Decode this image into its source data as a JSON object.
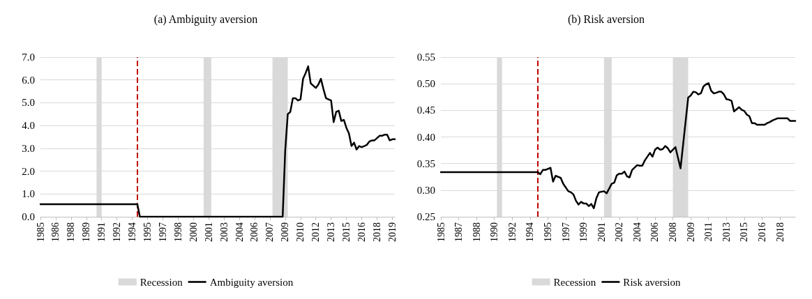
{
  "chart_data": [
    {
      "type": "line",
      "title": "(a) Ambiguity aversion",
      "xlim": [
        1985,
        2019.75
      ],
      "xticks": [
        {
          "value": 1985,
          "label": "1985"
        },
        {
          "value": 1986.5,
          "label": "1986"
        },
        {
          "value": 1988,
          "label": "1988"
        },
        {
          "value": 1989.5,
          "label": "1989"
        },
        {
          "value": 1991,
          "label": "1991"
        },
        {
          "value": 1992.5,
          "label": "1992"
        },
        {
          "value": 1994,
          "label": "1994"
        },
        {
          "value": 1995.5,
          "label": "1995"
        },
        {
          "value": 1997,
          "label": "1997"
        },
        {
          "value": 1998.5,
          "label": "1998"
        },
        {
          "value": 2000,
          "label": "2000"
        },
        {
          "value": 2001.5,
          "label": "2001"
        },
        {
          "value": 2003,
          "label": "2003"
        },
        {
          "value": 2004.5,
          "label": "2004"
        },
        {
          "value": 2006,
          "label": "2006"
        },
        {
          "value": 2007.5,
          "label": "2007"
        },
        {
          "value": 2009,
          "label": "2009"
        },
        {
          "value": 2010.5,
          "label": "2010"
        },
        {
          "value": 2012,
          "label": "2012"
        },
        {
          "value": 2013.5,
          "label": "2013"
        },
        {
          "value": 2015,
          "label": "2015"
        },
        {
          "value": 2016.5,
          "label": "2016"
        },
        {
          "value": 2018,
          "label": "2018"
        },
        {
          "value": 2019.5,
          "label": "2019"
        }
      ],
      "ylim": [
        0,
        7
      ],
      "yticks": [
        {
          "value": 0,
          "label": "0.0"
        },
        {
          "value": 1,
          "label": "1.0"
        },
        {
          "value": 2,
          "label": "2.0"
        },
        {
          "value": 3,
          "label": "3.0"
        },
        {
          "value": 4,
          "label": "4.0"
        },
        {
          "value": 5,
          "label": "5.0"
        },
        {
          "value": 6,
          "label": "6.0"
        },
        {
          "value": 7,
          "label": "7.0"
        }
      ],
      "grid": "y",
      "legend": "bottom",
      "marker": "none",
      "series": [
        {
          "name": "Ambiguity aversion",
          "color": "#000000",
          "line_style": "solid",
          "x": [
            1985,
            1994.5,
            1994.75,
            2008.75,
            2009,
            2009.25,
            2009.5,
            2009.75,
            2010,
            2010.25,
            2010.5,
            2010.75,
            2011,
            2011.25,
            2011.5,
            2011.75,
            2012,
            2012.25,
            2012.5,
            2012.75,
            2013,
            2013.25,
            2013.5,
            2013.75,
            2014,
            2014.25,
            2014.5,
            2014.75,
            2015,
            2015.25,
            2015.5,
            2015.75,
            2016,
            2016.25,
            2016.5,
            2016.75,
            2017,
            2017.25,
            2017.5,
            2017.75,
            2018,
            2018.25,
            2018.5,
            2018.75,
            2019,
            2019.25,
            2019.5,
            2019.75
          ],
          "values": [
            0.55,
            0.55,
            0,
            0,
            2.9,
            4.5,
            4.6,
            5.2,
            5.2,
            5.1,
            5.15,
            6.05,
            6.3,
            6.6,
            5.85,
            5.75,
            5.65,
            5.8,
            6.05,
            5.6,
            5.2,
            5.15,
            5.1,
            4.15,
            4.6,
            4.65,
            4.2,
            4.25,
            3.9,
            3.65,
            3.1,
            3.25,
            2.95,
            3.1,
            3.05,
            3.1,
            3.15,
            3.3,
            3.35,
            3.35,
            3.45,
            3.55,
            3.55,
            3.6,
            3.6,
            3.35,
            3.4,
            3.4
          ]
        }
      ],
      "bands": [
        {
          "axis": "x",
          "from": 1990.5,
          "to": 1991,
          "label": "Recession",
          "color": "#d9d9d9"
        },
        {
          "axis": "x",
          "from": 2001,
          "to": 2001.75,
          "color": "#d9d9d9"
        },
        {
          "axis": "x",
          "from": 2007.75,
          "to": 2009.25,
          "color": "#d9d9d9"
        }
      ],
      "ref_lines": [
        {
          "axis": "x",
          "value": 1994.5,
          "color": "#c00000",
          "line_style": "dashed"
        }
      ]
    },
    {
      "type": "line",
      "title": "(b) Risk aversion",
      "xlim": [
        1985,
        2019.75
      ],
      "xticks": [
        {
          "value": 1985,
          "label": "1985"
        },
        {
          "value": 1986.75,
          "label": "1987"
        },
        {
          "value": 1988.5,
          "label": "1988"
        },
        {
          "value": 1990.25,
          "label": "1990"
        },
        {
          "value": 1992,
          "label": "1992"
        },
        {
          "value": 1993.75,
          "label": "1994"
        },
        {
          "value": 1995.5,
          "label": "1995"
        },
        {
          "value": 1997.25,
          "label": "1997"
        },
        {
          "value": 1999,
          "label": "1999"
        },
        {
          "value": 2000.75,
          "label": "2001"
        },
        {
          "value": 2002.5,
          "label": "2002"
        },
        {
          "value": 2004.25,
          "label": "2004"
        },
        {
          "value": 2006,
          "label": "2006"
        },
        {
          "value": 2007.75,
          "label": "2008"
        },
        {
          "value": 2009.5,
          "label": "2009"
        },
        {
          "value": 2011.25,
          "label": "2011"
        },
        {
          "value": 2013,
          "label": "2013"
        },
        {
          "value": 2014.75,
          "label": "2015"
        },
        {
          "value": 2016.5,
          "label": "2016"
        },
        {
          "value": 2018.25,
          "label": "2018"
        }
      ],
      "ylim": [
        0.25,
        0.55
      ],
      "yticks": [
        {
          "value": 0.25,
          "label": "0.25"
        },
        {
          "value": 0.3,
          "label": "0.30"
        },
        {
          "value": 0.35,
          "label": "0.35"
        },
        {
          "value": 0.4,
          "label": "0.40"
        },
        {
          "value": 0.45,
          "label": "0.45"
        },
        {
          "value": 0.5,
          "label": "0.50"
        },
        {
          "value": 0.55,
          "label": "0.55"
        }
      ],
      "grid": "y",
      "legend": "bottom",
      "marker": "none",
      "series": [
        {
          "name": "Risk aversion",
          "color": "#000000",
          "line_style": "solid",
          "x": [
            1985,
            1994.5,
            1994.75,
            1995,
            1995.25,
            1995.75,
            1996,
            1996.25,
            1996.75,
            1997,
            1997.5,
            1997.75,
            1998,
            1998.25,
            1998.5,
            1998.75,
            1999,
            1999.25,
            1999.5,
            1999.75,
            2000,
            2000.25,
            2000.5,
            2000.75,
            2001,
            2001.25,
            2001.5,
            2001.75,
            2002,
            2002.25,
            2002.5,
            2002.75,
            2003,
            2003.25,
            2003.5,
            2003.75,
            2004.25,
            2004.5,
            2004.75,
            2005,
            2005.5,
            2005.75,
            2006,
            2006.25,
            2006.5,
            2006.75,
            2007,
            2007.25,
            2007.5,
            2008,
            2008.5,
            2009.25,
            2009.5,
            2009.75,
            2010,
            2010.25,
            2010.5,
            2010.75,
            2011,
            2011.25,
            2011.5,
            2011.75,
            2012,
            2012.25,
            2012.5,
            2012.75,
            2013,
            2013.25,
            2013.5,
            2013.75,
            2014,
            2014.25,
            2014.5,
            2014.75,
            2015,
            2015.25,
            2015.5,
            2015.75,
            2016,
            2016.25,
            2016.5,
            2016.75,
            2017,
            2017.25,
            2017.5,
            2017.75,
            2018,
            2018.25,
            2018.5,
            2018.75,
            2019,
            2019.25,
            2019.5,
            2019.75
          ],
          "values": [
            0.334,
            0.334,
            0.33,
            0.338,
            0.338,
            0.342,
            0.316,
            0.327,
            0.323,
            0.312,
            0.298,
            0.296,
            0.292,
            0.28,
            0.273,
            0.278,
            0.275,
            0.275,
            0.27,
            0.274,
            0.266,
            0.285,
            0.296,
            0.297,
            0.298,
            0.294,
            0.303,
            0.312,
            0.314,
            0.328,
            0.331,
            0.331,
            0.335,
            0.326,
            0.324,
            0.338,
            0.347,
            0.346,
            0.346,
            0.356,
            0.37,
            0.363,
            0.376,
            0.38,
            0.376,
            0.377,
            0.383,
            0.379,
            0.371,
            0.381,
            0.341,
            0.474,
            0.478,
            0.485,
            0.484,
            0.48,
            0.482,
            0.495,
            0.499,
            0.501,
            0.487,
            0.482,
            0.483,
            0.485,
            0.485,
            0.48,
            0.471,
            0.47,
            0.468,
            0.448,
            0.452,
            0.456,
            0.451,
            0.449,
            0.442,
            0.439,
            0.426,
            0.426,
            0.423,
            0.423,
            0.423,
            0.423,
            0.426,
            0.428,
            0.431,
            0.433,
            0.435,
            0.435,
            0.435,
            0.435,
            0.435,
            0.43,
            0.43,
            0.43
          ]
        }
      ],
      "bands": [
        {
          "axis": "x",
          "from": 1990.5,
          "to": 1991,
          "label": "Recession",
          "color": "#d9d9d9"
        },
        {
          "axis": "x",
          "from": 2001,
          "to": 2001.75,
          "color": "#d9d9d9"
        },
        {
          "axis": "x",
          "from": 2007.75,
          "to": 2009.25,
          "color": "#d9d9d9"
        }
      ],
      "ref_lines": [
        {
          "axis": "x",
          "value": 1994.5,
          "color": "#c00000",
          "line_style": "dashed"
        }
      ]
    }
  ]
}
